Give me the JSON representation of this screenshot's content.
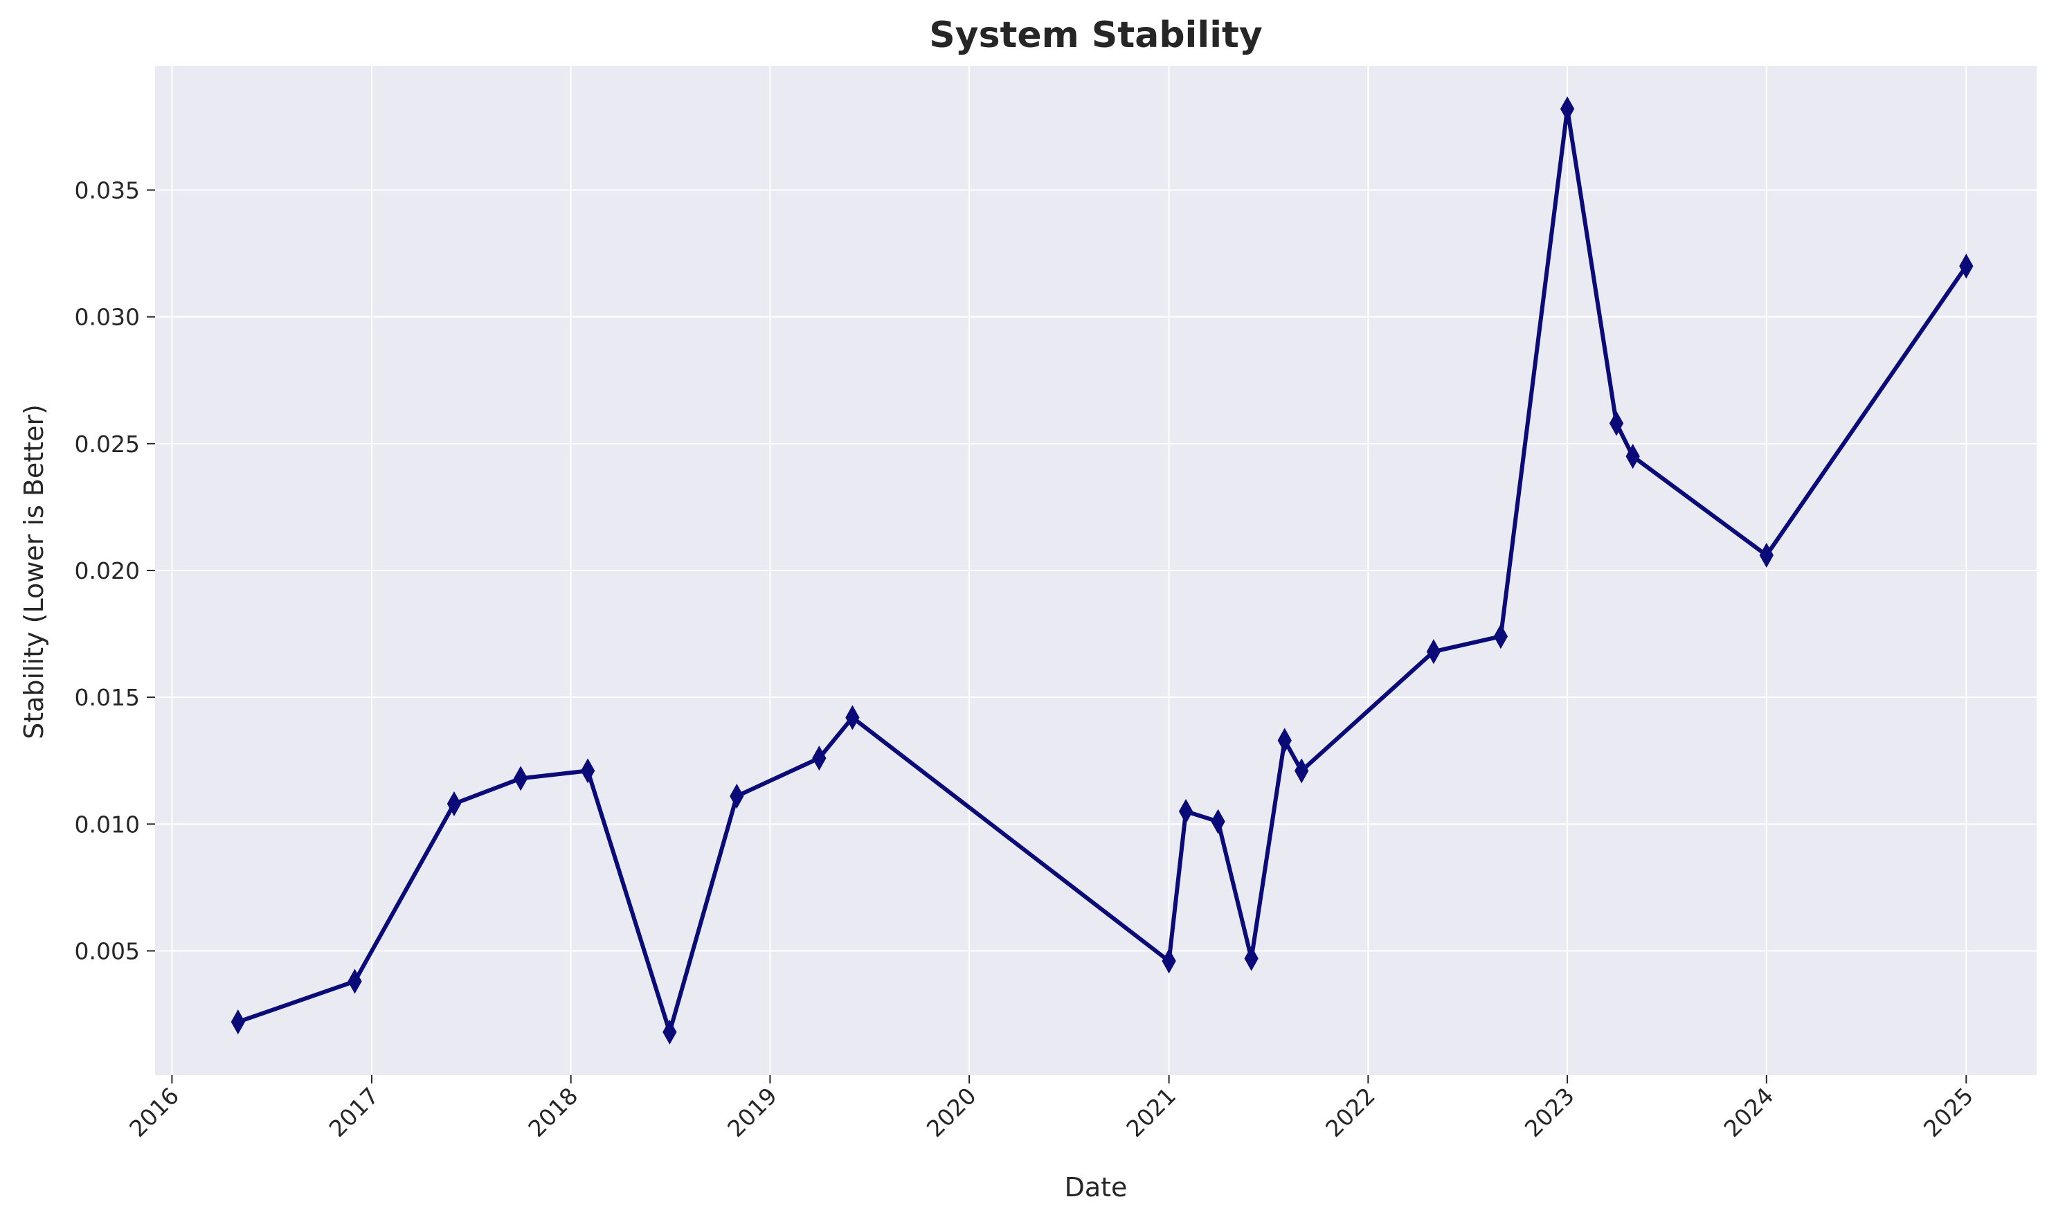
{
  "chart_data": {
    "type": "line",
    "title": "System Stability",
    "xlabel": "Date",
    "ylabel": "Stability (Lower is Better)",
    "x_ticks": [
      "2016",
      "2017",
      "2018",
      "2019",
      "2020",
      "2021",
      "2022",
      "2023",
      "2024",
      "2025"
    ],
    "y_ticks": [
      "0.005",
      "0.010",
      "0.015",
      "0.020",
      "0.025",
      "0.030",
      "0.035"
    ],
    "xlim": [
      "2015-12-01",
      "2025-05-10"
    ],
    "ylim": [
      0.0001,
      0.0399
    ],
    "grid": true,
    "marker": "thin-diamond",
    "colors": {
      "line": "#0a0a78",
      "plot_bg": "#eaeaf2",
      "grid": "#ffffff",
      "text": "#262626"
    },
    "series": [
      {
        "x": [
          "2016-05-01",
          "2016-12-01",
          "2017-06-01",
          "2017-10-01",
          "2018-02-01",
          "2018-07-01",
          "2018-11-01",
          "2019-04-01",
          "2019-06-01",
          "2021-01-01",
          "2021-02-01",
          "2021-04-01",
          "2021-06-01",
          "2021-08-01",
          "2021-09-01",
          "2022-05-01",
          "2022-09-01",
          "2023-01-01",
          "2023-04-01",
          "2023-05-01",
          "2024-01-01",
          "2025-01-01"
        ],
        "y": [
          0.0022,
          0.0038,
          0.0108,
          0.0118,
          0.0121,
          0.0018,
          0.0111,
          0.0126,
          0.0142,
          0.0046,
          0.0105,
          0.0101,
          0.0047,
          0.0133,
          0.0121,
          0.0168,
          0.0174,
          0.0382,
          0.0258,
          0.0245,
          0.0206,
          0.032
        ]
      }
    ]
  }
}
